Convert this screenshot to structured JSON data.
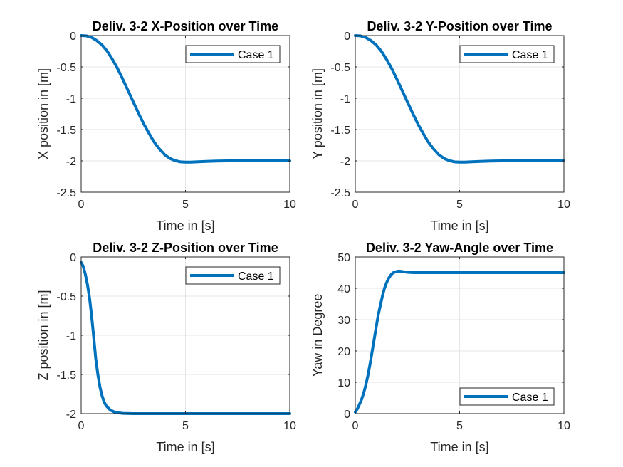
{
  "chart_data": [
    {
      "type": "line",
      "title": "Deliv. 3-2 X-Position over Time",
      "xlabel": "Time in [s]",
      "ylabel": "X position in [m]",
      "xlim": [
        0,
        10
      ],
      "ylim": [
        -2.5,
        0
      ],
      "xticks": [
        0,
        5,
        10
      ],
      "xtick_labels": [
        "0",
        "5",
        "10"
      ],
      "yticks": [
        0,
        -0.5,
        -1,
        -1.5,
        -2,
        -2.5
      ],
      "ytick_labels": [
        "0",
        "-0.5",
        "-1",
        "-1.5",
        "-2",
        "-2.5"
      ],
      "grid": true,
      "legend_position": "top-right",
      "series": [
        {
          "name": "Case 1",
          "color": "#0072BD",
          "x": [
            0,
            0.25,
            0.5,
            0.75,
            1,
            1.25,
            1.5,
            1.75,
            2,
            2.25,
            2.5,
            2.75,
            3,
            3.25,
            3.5,
            3.75,
            4,
            4.25,
            4.5,
            4.75,
            5,
            5.25,
            5.5,
            6,
            6.5,
            7,
            7.5,
            8,
            9,
            10
          ],
          "y": [
            0,
            -0.005,
            -0.03,
            -0.08,
            -0.15,
            -0.25,
            -0.38,
            -0.53,
            -0.7,
            -0.88,
            -1.06,
            -1.24,
            -1.41,
            -1.56,
            -1.7,
            -1.81,
            -1.9,
            -1.96,
            -1.996,
            -2.015,
            -2.02,
            -2.02,
            -2.015,
            -2.008,
            -2.003,
            -2.0,
            -2.0,
            -2.0,
            -2.0,
            -2.0
          ]
        }
      ]
    },
    {
      "type": "line",
      "title": "Deliv. 3-2 Y-Position over Time",
      "xlabel": "Time in [s]",
      "ylabel": "Y position in [m]",
      "xlim": [
        0,
        10
      ],
      "ylim": [
        -2.5,
        0
      ],
      "xticks": [
        0,
        5,
        10
      ],
      "xtick_labels": [
        "0",
        "5",
        "10"
      ],
      "yticks": [
        0,
        -0.5,
        -1,
        -1.5,
        -2,
        -2.5
      ],
      "ytick_labels": [
        "0",
        "-0.5",
        "-1",
        "-1.5",
        "-2",
        "-2.5"
      ],
      "grid": true,
      "legend_position": "top-right",
      "series": [
        {
          "name": "Case 1",
          "color": "#0072BD",
          "x": [
            0,
            0.25,
            0.5,
            0.75,
            1,
            1.25,
            1.5,
            1.75,
            2,
            2.25,
            2.5,
            2.75,
            3,
            3.25,
            3.5,
            3.75,
            4,
            4.25,
            4.5,
            4.75,
            5,
            5.25,
            5.5,
            6,
            6.5,
            7,
            7.5,
            8,
            9,
            10
          ],
          "y": [
            0,
            -0.005,
            -0.03,
            -0.08,
            -0.15,
            -0.25,
            -0.38,
            -0.53,
            -0.7,
            -0.88,
            -1.06,
            -1.24,
            -1.41,
            -1.56,
            -1.7,
            -1.81,
            -1.9,
            -1.96,
            -1.996,
            -2.015,
            -2.02,
            -2.02,
            -2.015,
            -2.008,
            -2.003,
            -2.0,
            -2.0,
            -2.0,
            -2.0,
            -2.0
          ]
        }
      ]
    },
    {
      "type": "line",
      "title": "Deliv. 3-2 Z-Position over Time",
      "xlabel": "Time in [s]",
      "ylabel": "Z position in [m]",
      "xlim": [
        0,
        10
      ],
      "ylim": [
        -2,
        0
      ],
      "xticks": [
        0,
        5,
        10
      ],
      "xtick_labels": [
        "0",
        "5",
        "10"
      ],
      "yticks": [
        0,
        -0.5,
        -1,
        -1.5,
        -2
      ],
      "ytick_labels": [
        "0",
        "-0.5",
        "-1",
        "-1.5",
        "-2"
      ],
      "grid": true,
      "legend_position": "top-right",
      "series": [
        {
          "name": "Case 1",
          "color": "#0072BD",
          "x": [
            0,
            0.1,
            0.2,
            0.3,
            0.4,
            0.5,
            0.6,
            0.7,
            0.8,
            0.9,
            1.0,
            1.1,
            1.2,
            1.4,
            1.6,
            1.8,
            2.0,
            2.5,
            3,
            4,
            5,
            6,
            7,
            8,
            9,
            10
          ],
          "y": [
            -0.07,
            -0.12,
            -0.22,
            -0.35,
            -0.52,
            -0.75,
            -1.02,
            -1.3,
            -1.5,
            -1.66,
            -1.77,
            -1.85,
            -1.9,
            -1.955,
            -1.98,
            -1.99,
            -1.997,
            -2.0,
            -2.0,
            -2.0,
            -2.0,
            -2.0,
            -2.0,
            -2.0,
            -2.0,
            -2.0
          ]
        }
      ]
    },
    {
      "type": "line",
      "title": "Deliv. 3-2 Yaw-Angle over Time",
      "xlabel": "Time in [s]",
      "ylabel": "Yaw in Degree",
      "xlim": [
        0,
        10
      ],
      "ylim": [
        0,
        50
      ],
      "xticks": [
        0,
        5,
        10
      ],
      "xtick_labels": [
        "0",
        "5",
        "10"
      ],
      "yticks": [
        0,
        10,
        20,
        30,
        40,
        50
      ],
      "ytick_labels": [
        "0",
        "10",
        "20",
        "30",
        "40",
        "50"
      ],
      "grid": true,
      "legend_position": "bottom-right",
      "series": [
        {
          "name": "Case 1",
          "color": "#0072BD",
          "x": [
            0,
            0.1,
            0.2,
            0.3,
            0.4,
            0.5,
            0.6,
            0.7,
            0.8,
            0.9,
            1.0,
            1.1,
            1.2,
            1.3,
            1.4,
            1.5,
            1.6,
            1.7,
            1.8,
            1.9,
            2.0,
            2.1,
            2.2,
            2.3,
            2.5,
            2.8,
            3.2,
            4,
            5,
            6,
            7,
            8,
            9,
            10
          ],
          "y": [
            0.5,
            1.5,
            3.0,
            4.5,
            6.5,
            9,
            12,
            15.5,
            19.5,
            23.5,
            27.5,
            31.5,
            34.5,
            37.5,
            40,
            41.8,
            43.2,
            44.2,
            44.9,
            45.2,
            45.4,
            45.5,
            45.4,
            45.3,
            45.1,
            45.0,
            45.0,
            45.0,
            45.0,
            45.0,
            45.0,
            45.0,
            45.0,
            45.0
          ]
        }
      ]
    }
  ]
}
